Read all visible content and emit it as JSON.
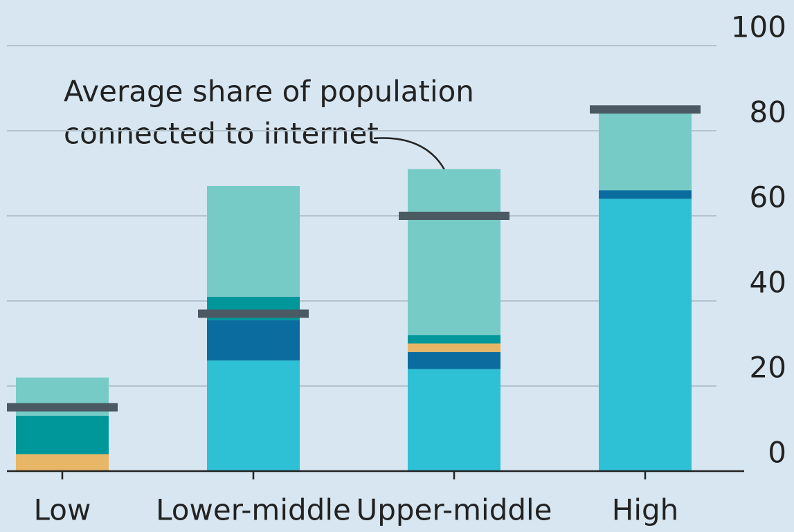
{
  "chart_data": {
    "type": "bar",
    "stacked": true,
    "categories": [
      "Low",
      "Lower-middle",
      "Upper-middle",
      "High"
    ],
    "series": [
      {
        "color": "#2ec0d5",
        "values": [
          0,
          26,
          24,
          64
        ]
      },
      {
        "color": "#0b6d9f",
        "values": [
          0,
          9.5,
          4,
          2
        ]
      },
      {
        "color": "#e7b666",
        "values": [
          4,
          0,
          2,
          0
        ]
      },
      {
        "color": "#00979b",
        "values": [
          9,
          5.5,
          2,
          0
        ]
      },
      {
        "color": "#76cbc7",
        "values": [
          9,
          26,
          39,
          19
        ]
      }
    ],
    "averages": {
      "color": "#4b5a62",
      "values": [
        15,
        37,
        60,
        85
      ]
    },
    "annotation": [
      "Average share of population",
      "connected to internet"
    ],
    "ylim": [
      0,
      100
    ],
    "yticks": [
      0,
      20,
      40,
      60,
      80,
      100
    ],
    "grid": true
  }
}
